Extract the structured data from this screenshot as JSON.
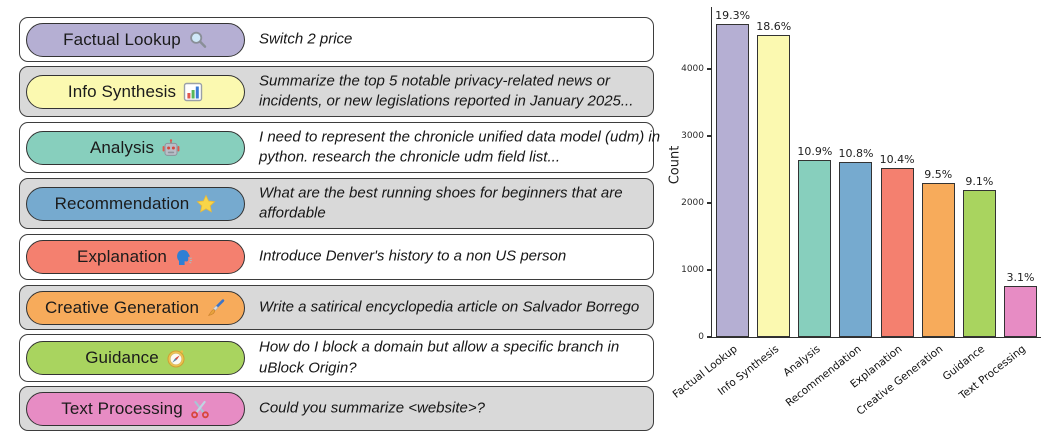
{
  "panel": {
    "categories": [
      {
        "label": "Factual Lookup",
        "icon": "magnifier-icon",
        "color": "#b5afd3",
        "row_bg": "#ffffff",
        "example": "Switch 2 price"
      },
      {
        "label": "Info Synthesis",
        "icon": "bar-chart-icon",
        "color": "#fbf9b0",
        "row_bg": "#d9d9d9",
        "example": "Summarize the top 5 notable privacy-related news or incidents, or new legislations reported in January 2025..."
      },
      {
        "label": "Analysis",
        "icon": "robot-icon",
        "color": "#87cfbd",
        "row_bg": "#ffffff",
        "example": "I need to represent the chronicle unified data model (udm) in python. research the chronicle udm field list..."
      },
      {
        "label": "Recommendation",
        "icon": "star-icon",
        "color": "#76aacf",
        "row_bg": "#d9d9d9",
        "example": "What are the best running shoes for beginners that are affordable"
      },
      {
        "label": "Explanation",
        "icon": "speaking-head-icon",
        "color": "#f4806f",
        "row_bg": "#ffffff",
        "example": "Introduce Denver's history to a non US person"
      },
      {
        "label": "Creative Generation",
        "icon": "paintbrush-icon",
        "color": "#f7ab5b",
        "row_bg": "#d9d9d9",
        "example": "Write a satirical encyclopedia article on Salvador Borrego"
      },
      {
        "label": "Guidance",
        "icon": "compass-icon",
        "color": "#a9d45f",
        "row_bg": "#ffffff",
        "example": "How do I block a domain but allow a specific branch in uBlock Origin?"
      },
      {
        "label": "Text Processing",
        "icon": "scissors-icon",
        "color": "#e78cc4",
        "row_bg": "#d9d9d9",
        "example": "Could you summarize <website>?"
      }
    ]
  },
  "chart_data": {
    "type": "bar",
    "title": "",
    "xlabel": "",
    "ylabel": "Count",
    "categories": [
      "Factual Lookup",
      "Info Synthesis",
      "Analysis",
      "Recommendation",
      "Explanation",
      "Creative Generation",
      "Guidance",
      "Text Processing"
    ],
    "values": [
      4670,
      4500,
      2640,
      2610,
      2520,
      2300,
      2200,
      755
    ],
    "percent_labels": [
      "19.3%",
      "18.6%",
      "10.9%",
      "10.8%",
      "10.4%",
      "9.5%",
      "9.1%",
      "3.1%"
    ],
    "bar_colors": [
      "#b5afd3",
      "#fbf9b0",
      "#87cfbd",
      "#76aacf",
      "#f4806f",
      "#f7ab5b",
      "#a9d45f",
      "#e78cc4"
    ],
    "bar_edge_color": "#333333",
    "yticks": [
      0,
      1000,
      2000,
      3000,
      4000
    ],
    "ylim": [
      0,
      4925
    ],
    "grid": false,
    "legend": "none"
  }
}
